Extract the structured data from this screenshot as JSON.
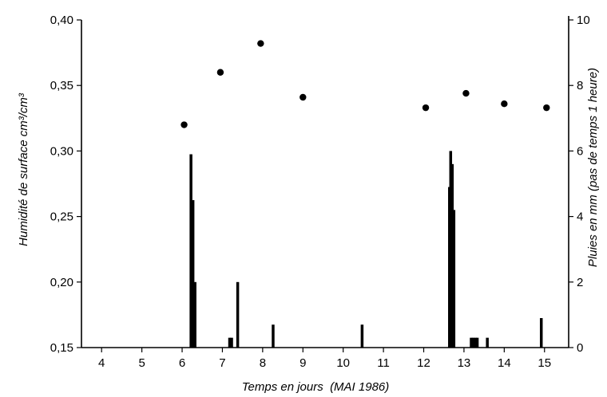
{
  "chart_data": {
    "type": "bar+scatter",
    "xlabel": "Temps en jours  (MAI 1986)",
    "ylabel_left": "Humidité de surface cm³/cm³",
    "ylabel_right": "Pluies en mm (pas de temps 1 heure)",
    "xlim": [
      3.5,
      15.6
    ],
    "x_ticks": [
      4,
      5,
      6,
      7,
      8,
      9,
      10,
      11,
      12,
      13,
      14,
      15
    ],
    "x_tick_labels": [
      "4",
      "5",
      "6",
      "7",
      "8",
      "9",
      "10",
      "11",
      "12",
      "13",
      "14",
      "15"
    ],
    "ylim_left": [
      0.15,
      0.4
    ],
    "y_left_ticks": [
      0.15,
      0.2,
      0.25,
      0.3,
      0.35,
      0.4
    ],
    "y_left_tick_labels": [
      "0,15",
      "0,20",
      "0,25",
      "0,30",
      "0,35",
      "0,40"
    ],
    "ylim_right": [
      0,
      10
    ],
    "y_right_ticks": [
      0,
      2,
      4,
      6,
      8,
      10
    ],
    "y_right_tick_labels": [
      "0",
      "2",
      "4",
      "6",
      "8",
      "10"
    ],
    "grid": false,
    "moisture_points": {
      "x": [
        6.05,
        6.95,
        7.95,
        9.0,
        12.05,
        13.05,
        14.0,
        15.05
      ],
      "y": [
        0.32,
        0.36,
        0.382,
        0.341,
        0.333,
        0.344,
        0.336,
        0.333
      ]
    },
    "rainfall_bars": {
      "x": [
        6.22,
        6.27,
        6.32,
        7.18,
        7.23,
        7.38,
        8.26,
        10.47,
        12.64,
        12.67,
        12.71,
        12.75,
        13.18,
        13.23,
        13.28,
        13.33,
        13.58,
        14.92
      ],
      "y": [
        5.9,
        4.5,
        2.0,
        0.3,
        0.3,
        2.0,
        0.7,
        0.7,
        4.9,
        6.0,
        5.6,
        4.2,
        0.3,
        0.3,
        0.3,
        0.3,
        0.3,
        0.9
      ]
    }
  }
}
